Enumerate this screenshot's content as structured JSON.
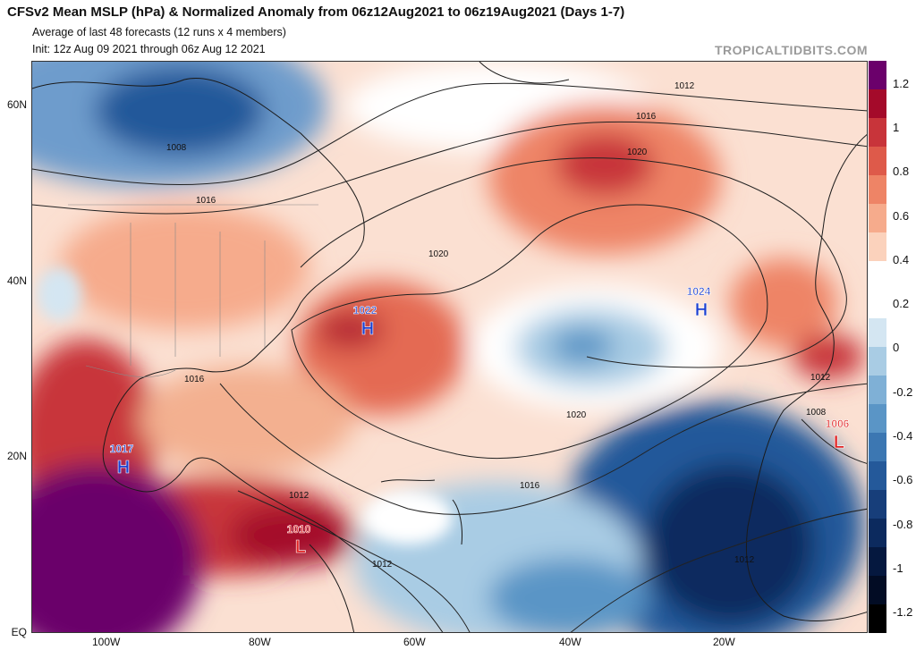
{
  "header": {
    "title": "CFSv2 Mean MSLP (hPa) & Normalized Anomaly from 06z12Aug2021 to 06z19Aug2021 (Days 1-7)",
    "subtitle1": "Average of last 48 forecasts (12 runs x 4 members)",
    "subtitle2": "Init: 12z Aug 09 2021 through 06z Aug 12 2021",
    "brand": "TROPICALTIDBITS.COM"
  },
  "axes": {
    "lat_labels": [
      "60N",
      "40N",
      "20N",
      "EQ"
    ],
    "lon_labels": [
      "100W",
      "80W",
      "60W",
      "40W",
      "20W"
    ]
  },
  "colorbar": {
    "ticks": [
      "1.2",
      "1",
      "0.8",
      "0.6",
      "0.4",
      "0.2",
      "0",
      "-0.2",
      "-0.4",
      "-0.6",
      "-0.8",
      "-1",
      "-1.2"
    ],
    "colors": [
      "#6b006b",
      "#a40a2a",
      "#c8343a",
      "#de5a4a",
      "#ee8466",
      "#f6ab8c",
      "#fbd2bc",
      "#ffffff",
      "#ffffff",
      "#d4e6f2",
      "#a9cce4",
      "#7fb0d6",
      "#5a95c6",
      "#3c77b2",
      "#24599a",
      "#173e7a",
      "#0c2a5e",
      "#05183f",
      "#020c24",
      "#000000"
    ]
  },
  "centers": [
    {
      "label": "1022",
      "type": "H",
      "kind": "high"
    },
    {
      "label": "1024",
      "type": "H",
      "kind": "high"
    },
    {
      "label": "1017",
      "type": "H",
      "kind": "high"
    },
    {
      "label": "1010",
      "type": "L",
      "kind": "low"
    },
    {
      "label": "1006",
      "type": "L",
      "kind": "low"
    }
  ],
  "isobar_labels": [
    "1012",
    "1016",
    "1020",
    "1008",
    "1016",
    "1020",
    "1016",
    "1020",
    "1016",
    "1012",
    "1012",
    "1008",
    "1012",
    "1012"
  ]
}
